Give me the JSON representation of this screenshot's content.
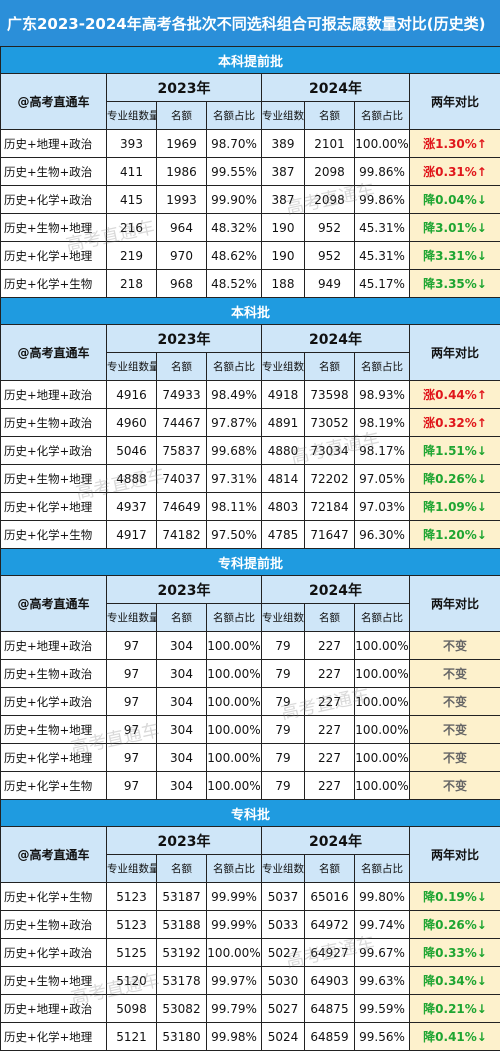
{
  "title": "广东2023-2024年高考各批次不同选科组合可报志愿数量对比(历史类)",
  "header": {
    "corner": "@高考直通车",
    "year_a": "2023年",
    "year_b": "2024年",
    "sub_groups": "专业组数量",
    "sub_quota": "名额",
    "sub_share": "名额占比",
    "compare": "两年对比"
  },
  "watermark": "高考直通车",
  "colors": {
    "title_bg": "#2b8fd9",
    "section_bg": "#1f9be0",
    "header_bg": "#cfe6f8",
    "trend_bg": "#fdf1cc",
    "up": "#e0161b",
    "down": "#1ea531"
  },
  "sections": [
    {
      "name": "本科提前批",
      "rows": [
        {
          "combo": "历史+地理+政治",
          "g23": "393",
          "q23": "1969",
          "p23": "98.70%",
          "g24": "389",
          "q24": "2101",
          "p24": "100.00%",
          "trend": "涨1.30%↑",
          "dir": "up"
        },
        {
          "combo": "历史+生物+政治",
          "g23": "411",
          "q23": "1986",
          "p23": "99.55%",
          "g24": "387",
          "q24": "2098",
          "p24": "99.86%",
          "trend": "涨0.31%↑",
          "dir": "up"
        },
        {
          "combo": "历史+化学+政治",
          "g23": "415",
          "q23": "1993",
          "p23": "99.90%",
          "g24": "387",
          "q24": "2098",
          "p24": "99.86%",
          "trend": "降0.04%↓",
          "dir": "down"
        },
        {
          "combo": "历史+生物+地理",
          "g23": "216",
          "q23": "964",
          "p23": "48.32%",
          "g24": "190",
          "q24": "952",
          "p24": "45.31%",
          "trend": "降3.01%↓",
          "dir": "down"
        },
        {
          "combo": "历史+化学+地理",
          "g23": "219",
          "q23": "970",
          "p23": "48.62%",
          "g24": "190",
          "q24": "952",
          "p24": "45.31%",
          "trend": "降3.31%↓",
          "dir": "down"
        },
        {
          "combo": "历史+化学+生物",
          "g23": "218",
          "q23": "968",
          "p23": "48.52%",
          "g24": "188",
          "q24": "949",
          "p24": "45.17%",
          "trend": "降3.35%↓",
          "dir": "down"
        }
      ]
    },
    {
      "name": "本科批",
      "rows": [
        {
          "combo": "历史+地理+政治",
          "g23": "4916",
          "q23": "74933",
          "p23": "98.49%",
          "g24": "4918",
          "q24": "73598",
          "p24": "98.93%",
          "trend": "涨0.44%↑",
          "dir": "up"
        },
        {
          "combo": "历史+生物+政治",
          "g23": "4960",
          "q23": "74467",
          "p23": "97.87%",
          "g24": "4891",
          "q24": "73052",
          "p24": "98.19%",
          "trend": "涨0.32%↑",
          "dir": "up"
        },
        {
          "combo": "历史+化学+政治",
          "g23": "5046",
          "q23": "75837",
          "p23": "99.68%",
          "g24": "4880",
          "q24": "73034",
          "p24": "98.17%",
          "trend": "降1.51%↓",
          "dir": "down"
        },
        {
          "combo": "历史+生物+地理",
          "g23": "4888",
          "q23": "74037",
          "p23": "97.31%",
          "g24": "4814",
          "q24": "72202",
          "p24": "97.05%",
          "trend": "降0.26%↓",
          "dir": "down"
        },
        {
          "combo": "历史+化学+地理",
          "g23": "4937",
          "q23": "74649",
          "p23": "98.11%",
          "g24": "4803",
          "q24": "72184",
          "p24": "97.03%",
          "trend": "降1.09%↓",
          "dir": "down"
        },
        {
          "combo": "历史+化学+生物",
          "g23": "4917",
          "q23": "74182",
          "p23": "97.50%",
          "g24": "4785",
          "q24": "71647",
          "p24": "96.30%",
          "trend": "降1.20%↓",
          "dir": "down"
        }
      ]
    },
    {
      "name": "专科提前批",
      "rows": [
        {
          "combo": "历史+地理+政治",
          "g23": "97",
          "q23": "304",
          "p23": "100.00%",
          "g24": "79",
          "q24": "227",
          "p24": "100.00%",
          "trend": "不变",
          "dir": "same"
        },
        {
          "combo": "历史+生物+政治",
          "g23": "97",
          "q23": "304",
          "p23": "100.00%",
          "g24": "79",
          "q24": "227",
          "p24": "100.00%",
          "trend": "不变",
          "dir": "same"
        },
        {
          "combo": "历史+化学+政治",
          "g23": "97",
          "q23": "304",
          "p23": "100.00%",
          "g24": "79",
          "q24": "227",
          "p24": "100.00%",
          "trend": "不变",
          "dir": "same"
        },
        {
          "combo": "历史+生物+地理",
          "g23": "97",
          "q23": "304",
          "p23": "100.00%",
          "g24": "79",
          "q24": "227",
          "p24": "100.00%",
          "trend": "不变",
          "dir": "same"
        },
        {
          "combo": "历史+化学+地理",
          "g23": "97",
          "q23": "304",
          "p23": "100.00%",
          "g24": "79",
          "q24": "227",
          "p24": "100.00%",
          "trend": "不变",
          "dir": "same"
        },
        {
          "combo": "历史+化学+生物",
          "g23": "97",
          "q23": "304",
          "p23": "100.00%",
          "g24": "79",
          "q24": "227",
          "p24": "100.00%",
          "trend": "不变",
          "dir": "same"
        }
      ]
    },
    {
      "name": "专科批",
      "rows": [
        {
          "combo": "历史+化学+生物",
          "g23": "5123",
          "q23": "53187",
          "p23": "99.99%",
          "g24": "5037",
          "q24": "65016",
          "p24": "99.80%",
          "trend": "降0.19%↓",
          "dir": "down"
        },
        {
          "combo": "历史+生物+政治",
          "g23": "5123",
          "q23": "53188",
          "p23": "99.99%",
          "g24": "5033",
          "q24": "64972",
          "p24": "99.74%",
          "trend": "降0.26%↓",
          "dir": "down"
        },
        {
          "combo": "历史+化学+政治",
          "g23": "5125",
          "q23": "53192",
          "p23": "100.00%",
          "g24": "5027",
          "q24": "64927",
          "p24": "99.67%",
          "trend": "降0.33%↓",
          "dir": "down"
        },
        {
          "combo": "历史+生物+地理",
          "g23": "5120",
          "q23": "53178",
          "p23": "99.97%",
          "g24": "5030",
          "q24": "64903",
          "p24": "99.63%",
          "trend": "降0.34%↓",
          "dir": "down"
        },
        {
          "combo": "历史+地理+政治",
          "g23": "5098",
          "q23": "53082",
          "p23": "99.79%",
          "g24": "5027",
          "q24": "64875",
          "p24": "99.59%",
          "trend": "降0.21%↓",
          "dir": "down"
        },
        {
          "combo": "历史+化学+地理",
          "g23": "5121",
          "q23": "53180",
          "p23": "99.98%",
          "g24": "5024",
          "q24": "64859",
          "p24": "99.56%",
          "trend": "降0.41%↓",
          "dir": "down"
        }
      ]
    }
  ]
}
